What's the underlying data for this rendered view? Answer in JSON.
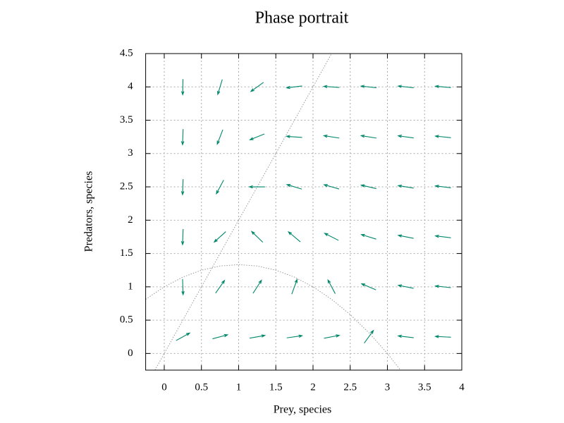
{
  "chart_data": {
    "type": "quiver",
    "title": "Phase portrait",
    "x_label": "Prey, species",
    "y_label": "Predators, species",
    "xlim": [
      -0.25,
      4
    ],
    "ylim": [
      -0.25,
      4.5
    ],
    "xticks": [
      0,
      0.5,
      1,
      1.5,
      2,
      2.5,
      3,
      3.5,
      4
    ],
    "yticks": [
      0,
      0.5,
      1,
      1.5,
      2,
      2.5,
      3,
      3.5,
      4,
      4.5
    ],
    "grid": true,
    "arrows": {
      "color": "#00876a",
      "x": [
        0.25,
        0.25,
        0.25,
        0.25,
        0.25,
        0.25,
        0.75,
        0.75,
        0.75,
        0.75,
        0.75,
        0.75,
        1.25,
        1.25,
        1.25,
        1.25,
        1.25,
        1.25,
        1.75,
        1.75,
        1.75,
        1.75,
        1.75,
        1.75,
        2.25,
        2.25,
        2.25,
        2.25,
        2.25,
        2.25,
        2.75,
        2.75,
        2.75,
        2.75,
        2.75,
        2.75,
        3.25,
        3.25,
        3.25,
        3.25,
        3.25,
        3.25,
        3.75,
        3.75,
        3.75,
        3.75,
        3.75,
        3.75
      ],
      "y": [
        0.25,
        1,
        1.75,
        2.5,
        3.25,
        4,
        0.25,
        1,
        1.75,
        2.5,
        3.25,
        4,
        0.25,
        1,
        1.75,
        2.5,
        3.25,
        4,
        0.25,
        1,
        1.75,
        2.5,
        3.25,
        4,
        0.25,
        1,
        1.75,
        2.5,
        3.25,
        4,
        0.25,
        1,
        1.75,
        2.5,
        3.25,
        4,
        0.25,
        1,
        1.75,
        2.5,
        3.25,
        4,
        0.25,
        1,
        1.75,
        2.5,
        3.25,
        4
      ],
      "angle": [
        29,
        -88,
        -92,
        -92,
        -92,
        -91,
        15,
        55,
        -138,
        -118,
        -111,
        -107,
        10,
        57,
        136,
        180,
        -158,
        -144,
        8,
        70,
        140,
        163,
        176,
        -173,
        11,
        118,
        153,
        164,
        171,
        176,
        54,
        157,
        163,
        167,
        171,
        174,
        173,
        169,
        169,
        171,
        172,
        174,
        177,
        174,
        173,
        173,
        174,
        175
      ]
    },
    "series": [
      {
        "color": "#999999",
        "x": [
          -0.125,
          2.25
        ],
        "y": [
          -0.25,
          4.5
        ]
      },
      {
        "color": "#999999",
        "x": [
          -0.25,
          0,
          0.25,
          0.5,
          0.75,
          1,
          1.25,
          1.5,
          1.75,
          2,
          2.25,
          2.5,
          2.75,
          3,
          3.25
        ],
        "y": [
          0.8125,
          1,
          1.1458,
          1.25,
          1.3125,
          1.3333,
          1.3125,
          1.25,
          1.1458,
          1,
          0.8125,
          0.5833,
          0.3125,
          0,
          -0.3542
        ]
      }
    ]
  }
}
